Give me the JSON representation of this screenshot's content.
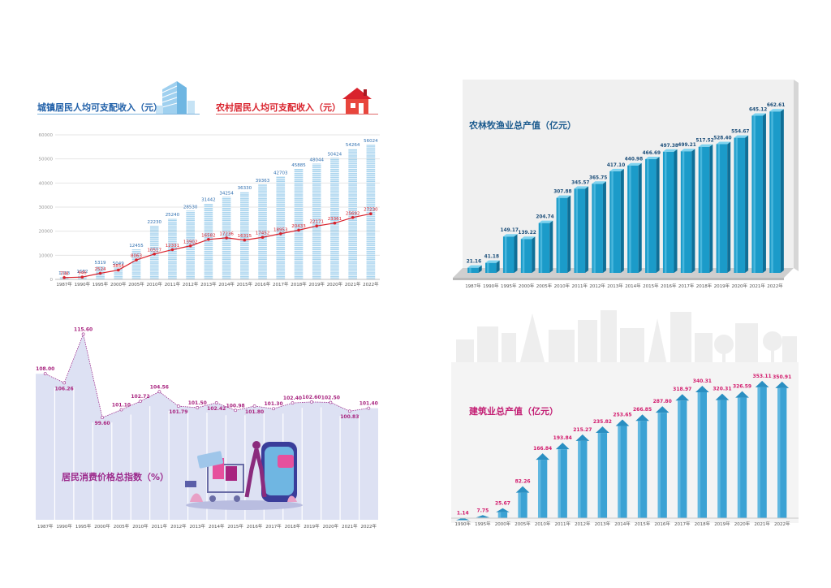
{
  "colors": {
    "income_bar": "#a9d4ee",
    "income_line": "#d9232d",
    "income_title_urban": "#1f5fa8",
    "income_title_rural": "#d9232d",
    "agri_bar": "#1b9bc9",
    "agri_title": "#1d5c8f",
    "cpi_area": "#dde1f3",
    "cpi_line": "#9c2a8c",
    "cpi_label": "#a8247f",
    "build_bar": "#3ba2d4",
    "build_label": "#d21a6c",
    "build_title": "#c31f74"
  },
  "icons": [
    "building-icon",
    "house-icon",
    "shopping-illustration",
    "city-skyline"
  ],
  "panels": {
    "income": {
      "title_urban": "城镇居民人均可支配收入（元）",
      "title_rural": "农村居民人均可支配收入（元）"
    },
    "agri": {
      "title": "农林牧渔业总产值（亿元）"
    },
    "cpi": {
      "title": "居民消费价格总指数（%）"
    },
    "build": {
      "title": "建筑业总产值（亿元）"
    }
  },
  "chart_data": [
    {
      "id": "income",
      "type": "bar",
      "categories": [
        "1987年",
        "1990年",
        "1995年",
        "2000年",
        "2005年",
        "2010年",
        "2011年",
        "2012年",
        "2013年",
        "2014年",
        "2015年",
        "2016年",
        "2017年",
        "2018年",
        "2019年",
        "2020年",
        "2021年",
        "2022年"
      ],
      "yticks": [
        0,
        10000,
        20000,
        30000,
        40000,
        50000,
        60000
      ],
      "ylim": [
        0,
        60000
      ],
      "grid": true,
      "series": [
        {
          "name": "城镇居民人均可支配收入（元）",
          "type": "bar",
          "values": [
            1013,
            1682,
            5319,
            5049,
            12455,
            22230,
            25240,
            28530,
            31442,
            34254,
            36330,
            39363,
            42703,
            45885,
            48044,
            50424,
            54264,
            56024
          ],
          "labels": [
            "1013",
            "1682",
            "5319",
            "5049",
            "12455",
            "22230",
            "25240",
            "28530",
            "31442",
            "34254",
            "36330",
            "39363",
            "42703",
            "45885",
            "48044",
            "50424",
            "54264",
            "56024"
          ]
        },
        {
          "name": "农村居民人均可支配收入（元）",
          "type": "line",
          "values": [
            738,
            946,
            2524,
            3854,
            8063,
            10517,
            12331,
            13902,
            16582,
            17236,
            16315,
            17452,
            18953,
            20433,
            22171,
            23361,
            25692,
            27230
          ],
          "labels": [
            "738",
            "946",
            "2524",
            "3854",
            "8063",
            "10517",
            "12331",
            "13902",
            "16582",
            "17236",
            "16315",
            "17452",
            "18953",
            "20433",
            "22171",
            "23361",
            "25692",
            "27230"
          ]
        }
      ]
    },
    {
      "id": "agri",
      "type": "bar",
      "categories": [
        "1987年",
        "1990年",
        "1995年",
        "2000年",
        "2005年",
        "2010年",
        "2011年",
        "2012年",
        "2013年",
        "2014年",
        "2015年",
        "2016年",
        "2017年",
        "2018年",
        "2019年",
        "2020年",
        "2021年",
        "2022年"
      ],
      "ylim": [
        0,
        700
      ],
      "series": [
        {
          "name": "农林牧渔业总产值（亿元）",
          "values": [
            21.16,
            41.18,
            149.17,
            139.22,
            204.74,
            307.88,
            345.57,
            365.75,
            417.1,
            440.98,
            466.69,
            497.38,
            499.21,
            517.52,
            528.4,
            554.67,
            645.12,
            662.61
          ],
          "labels": [
            "21.16",
            "41.18",
            "149.17",
            "139.22",
            "204.74",
            "307.88",
            "345.57",
            "365.75",
            "417.10",
            "440.98",
            "466.69",
            "497.38",
            "499.21",
            "517.52",
            "528.40",
            "554.67",
            "645.12",
            "662.61"
          ]
        }
      ]
    },
    {
      "id": "cpi",
      "type": "area",
      "categories": [
        "1987年",
        "1990年",
        "1995年",
        "2000年",
        "2005年",
        "2010年",
        "2011年",
        "2012年",
        "2013年",
        "2014年",
        "2015年",
        "2016年",
        "2017年",
        "2018年",
        "2019年",
        "2020年",
        "2021年",
        "2022年"
      ],
      "ylim": [
        80,
        118
      ],
      "series": [
        {
          "name": "居民消费价格总指数（%）",
          "values": [
            108.0,
            106.26,
            115.6,
            99.6,
            101.1,
            102.72,
            104.56,
            101.79,
            101.5,
            102.42,
            100.98,
            101.8,
            101.3,
            102.4,
            102.6,
            102.5,
            100.83,
            101.4
          ],
          "labels": [
            "108.00",
            "106.26",
            "115.60",
            "99.60",
            "101.10",
            "102.72",
            "104.56",
            "101.79",
            "101.50",
            "102.42",
            "100.98",
            "101.80",
            "101.30",
            "102.40",
            "102.60",
            "102.50",
            "100.83",
            "101.40"
          ]
        }
      ]
    },
    {
      "id": "build",
      "type": "bar",
      "categories": [
        "1990年",
        "1995年",
        "2000年",
        "2005年",
        "2010年",
        "2011年",
        "2012年",
        "2013年",
        "2014年",
        "2015年",
        "2016年",
        "2017年",
        "2018年",
        "2019年",
        "2020年",
        "2021年",
        "2022年"
      ],
      "ylim": [
        0,
        380
      ],
      "series": [
        {
          "name": "建筑业总产值（亿元）",
          "values": [
            1.14,
            7.75,
            25.67,
            82.26,
            166.84,
            193.84,
            215.27,
            235.82,
            253.65,
            266.85,
            287.8,
            318.97,
            340.31,
            320.31,
            326.59,
            353.11,
            350.91
          ],
          "labels": [
            "1.14",
            "7.75",
            "25.67",
            "82.26",
            "166.84",
            "193.84",
            "215.27",
            "235.82",
            "253.65",
            "266.85",
            "287.80",
            "318.97",
            "340.31",
            "320.31",
            "326.59",
            "353.11",
            "350.91"
          ]
        }
      ]
    }
  ]
}
